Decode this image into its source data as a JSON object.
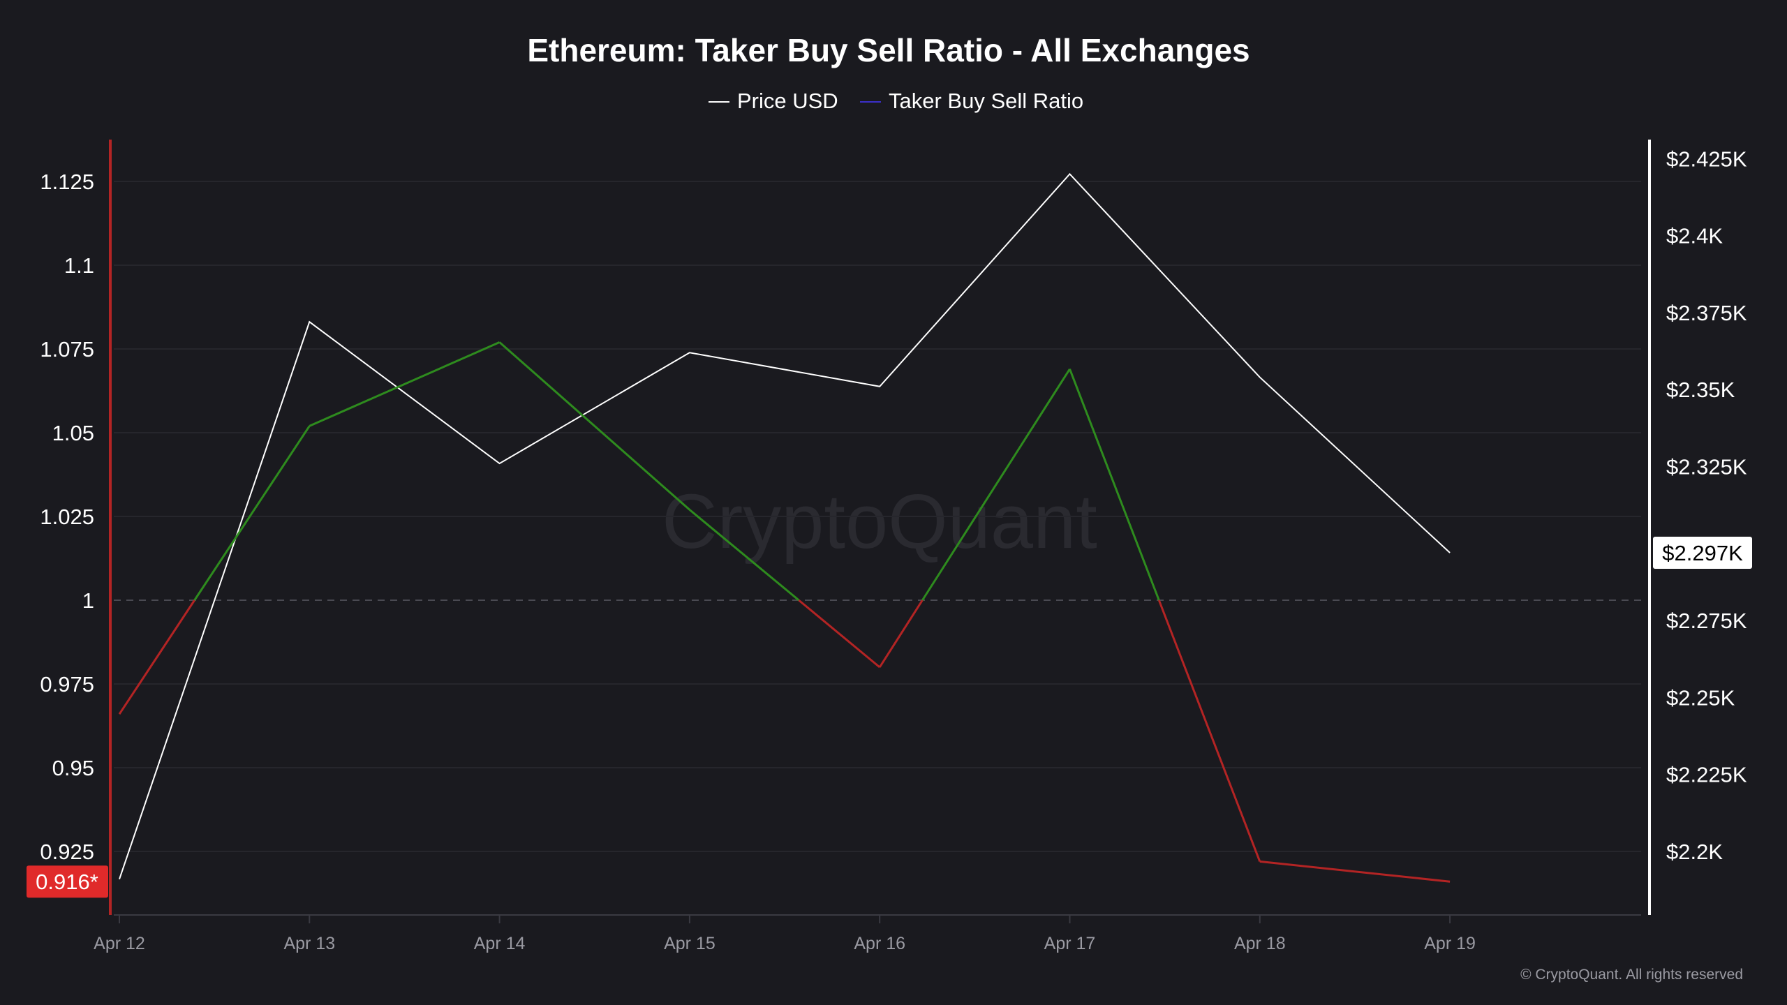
{
  "chart_data": {
    "type": "line",
    "title": "Ethereum: Taker Buy Sell Ratio - All Exchanges",
    "categories": [
      "Apr 12",
      "Apr 13",
      "Apr 14",
      "Apr 15",
      "Apr 16",
      "Apr 17",
      "Apr 18",
      "Apr 19"
    ],
    "series": [
      {
        "name": "Price USD",
        "axis": "right",
        "color": "#ffffff",
        "values": [
          2191,
          2372,
          2326,
          2362,
          2351,
          2420,
          2354,
          2297
        ]
      },
      {
        "name": "Taker Buy Sell Ratio",
        "axis": "left",
        "legend_color": "#3b2fc9",
        "color_above_1": "#2e8b1e",
        "color_below_1": "#b32424",
        "values": [
          0.966,
          1.052,
          1.077,
          1.027,
          0.98,
          1.069,
          0.922,
          0.916
        ]
      }
    ],
    "left_axis": {
      "ticks": [
        "1.125",
        "1.1",
        "1.075",
        "1.05",
        "1.025",
        "1",
        "0.975",
        "0.95",
        "0.925"
      ],
      "range": [
        0.9,
        1.135
      ],
      "color": "#b32424",
      "reference_line": 1
    },
    "right_axis": {
      "ticks": [
        "$2.425K",
        "$2.4K",
        "$2.375K",
        "$2.35K",
        "$2.325K",
        "$2.3K",
        "$2.275K",
        "$2.25K",
        "$2.225K",
        "$2.2K"
      ],
      "visible_ticks": [
        "$2.425K",
        "$2.4K",
        "$2.375K",
        "$2.35K",
        "$2.325K",
        "$2.275K",
        "$2.25K",
        "$2.225K",
        "$2.2K"
      ],
      "range": [
        2180,
        2440
      ]
    },
    "current_left_label": "0.916*",
    "current_right_label": "$2.297K",
    "grid": true,
    "legend_placement": "top-center",
    "watermark": "CryptoQuant",
    "footer": "© CryptoQuant. All rights reserved"
  }
}
